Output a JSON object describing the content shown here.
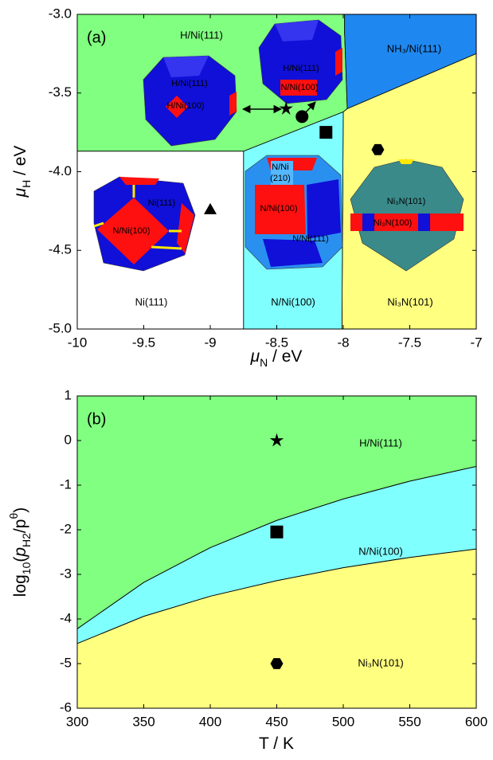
{
  "chart_data": [
    {
      "type": "region",
      "panel_label": "(a)",
      "xlabel": [
        {
          "text": "μ",
          "italic": true
        },
        {
          "text": "N",
          "sub": true
        },
        {
          "text": " / eV"
        }
      ],
      "ylabel": [
        {
          "text": "μ",
          "italic": true
        },
        {
          "text": "H",
          "sub": true
        },
        {
          "text": " / eV"
        }
      ],
      "xlim": [
        -10,
        -7
      ],
      "ylim": [
        -5,
        -3
      ],
      "xticks": [
        -10,
        -9.5,
        -9,
        -8.5,
        -8,
        -7.5,
        -7
      ],
      "yticks": [
        {
          "value": -5,
          "label": "-5.0"
        },
        -4.5,
        {
          "value": -4,
          "label": "-4.0"
        },
        -3.5,
        {
          "value": -3,
          "label": "-3.0"
        }
      ],
      "regions": [
        {
          "name": "H/Ni(111)",
          "color": "#80ff80",
          "x": [
            -10,
            -7.99,
            -7.99,
            -7.97,
            -8.0,
            -8.75,
            -10
          ],
          "y": [
            -3,
            -3,
            -3.12,
            -3.6,
            -3.62,
            -3.87,
            -3.87
          ]
        },
        {
          "name": "NH₃/Ni(111)",
          "color": "#1f88f0",
          "x": [
            -7.99,
            -7,
            -7,
            -7.97,
            -7.99
          ],
          "y": [
            -3,
            -3,
            -3.25,
            -3.6,
            -3.12
          ]
        },
        {
          "name": "Ni₃N(101)",
          "color": "#ffff80",
          "x": [
            -8.0,
            -7.97,
            -7,
            -7,
            -8.01
          ],
          "y": [
            -3.62,
            -3.6,
            -3.25,
            -5,
            -5
          ]
        },
        {
          "name": "N/Ni(100)",
          "color": "#80ffff",
          "x": [
            -8.75,
            -8.0,
            -8.01,
            -8.75
          ],
          "y": [
            -3.87,
            -3.62,
            -5,
            -5
          ]
        },
        {
          "name": "Ni(111)",
          "color": "#ffffff",
          "x": [
            -10,
            -8.75,
            -8.75,
            -10
          ],
          "y": [
            -3.87,
            -3.87,
            -5,
            -5
          ]
        }
      ],
      "points": [
        {
          "marker": "star",
          "x": -8.43,
          "y": -3.6
        },
        {
          "marker": "circle",
          "x": -8.31,
          "y": -3.65
        },
        {
          "marker": "square",
          "x": -8.13,
          "y": -3.75
        },
        {
          "marker": "hexagon",
          "x": -7.74,
          "y": -3.86
        },
        {
          "marker": "triangle",
          "x": -9.0,
          "y": -4.24
        }
      ],
      "illustration_labels": [
        "H/Ni(111)",
        "H/Ni(100)",
        "H/Ni(111)",
        "N/Ni(100)",
        "Ni(111)",
        "N/Ni(100)",
        "N/Ni",
        "(210)",
        "N/Ni(100)",
        "N/Ni(111)",
        "Ni₃N(101)",
        "Ni₃N(100)"
      ]
    },
    {
      "type": "area",
      "panel_label": "(b)",
      "xlabel": [
        {
          "text": "T / K"
        }
      ],
      "ylabel": [
        {
          "text": "log"
        },
        {
          "text": "10",
          "sub": true
        },
        {
          "text": "("
        },
        {
          "text": "p",
          "italic": true
        },
        {
          "text": "H2",
          "sub": true
        },
        {
          "text": "/p"
        },
        {
          "text": "θ",
          "sup": true
        },
        {
          "text": ")"
        }
      ],
      "xlim": [
        300,
        600
      ],
      "ylim": [
        -6,
        1
      ],
      "xticks": [
        300,
        350,
        400,
        450,
        500,
        550,
        600
      ],
      "yticks": [
        -6,
        -5,
        -4,
        -3,
        -2,
        -1,
        0,
        1
      ],
      "x": [
        300,
        350,
        400,
        450,
        500,
        550,
        600
      ],
      "boundaries": [
        {
          "color": "#000000",
          "values": [
            -4.22,
            -3.18,
            -2.4,
            -1.79,
            -1.31,
            -0.91,
            -0.58
          ]
        },
        {
          "color": "#000000",
          "values": [
            -4.55,
            -3.94,
            -3.49,
            -3.14,
            -2.85,
            -2.62,
            -2.43
          ]
        }
      ],
      "regions": [
        {
          "name": "H/Ni(111)",
          "color": "#80ff80"
        },
        {
          "name": "N/Ni(100)",
          "color": "#80ffff"
        },
        {
          "name": "Ni₃N(101)",
          "color": "#ffff80"
        }
      ],
      "points": [
        {
          "marker": "star",
          "x": 450,
          "y": 0
        },
        {
          "marker": "square",
          "x": 450,
          "y": -2.05
        },
        {
          "marker": "hexagon",
          "x": 450,
          "y": -5
        }
      ]
    }
  ]
}
